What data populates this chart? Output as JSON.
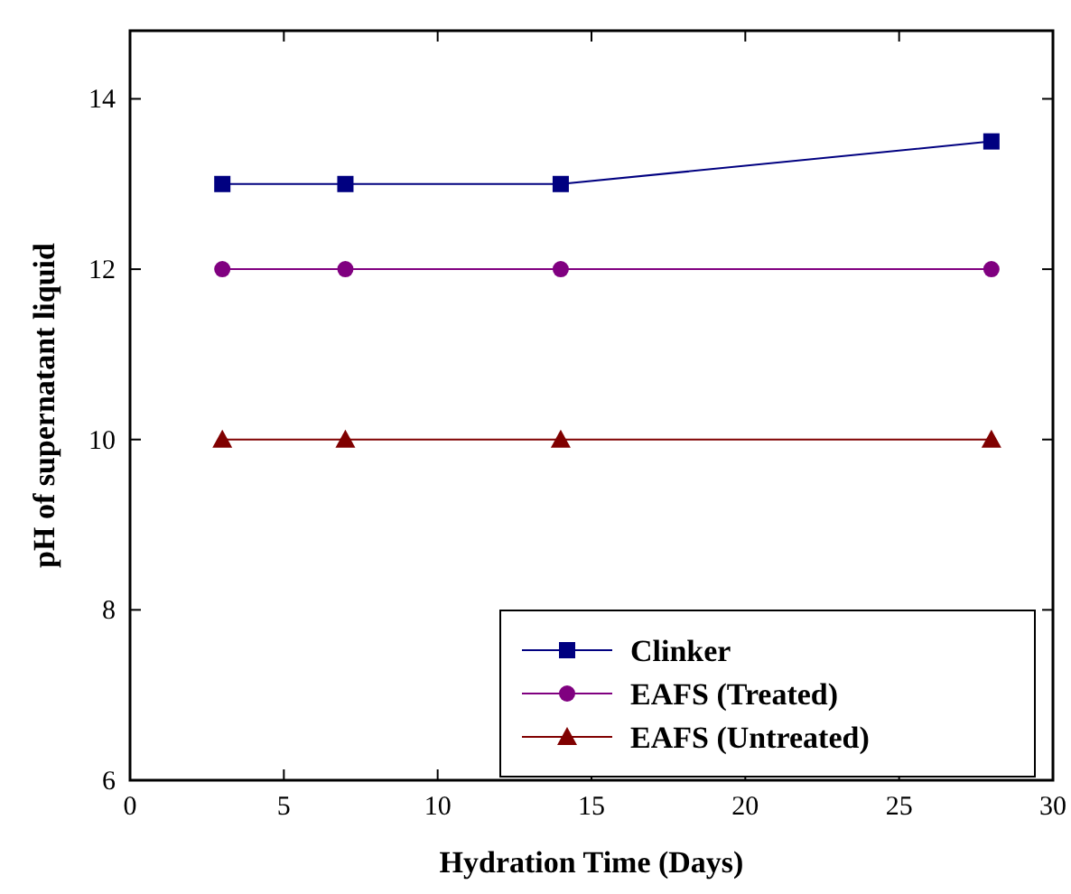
{
  "chart_data": {
    "type": "line",
    "xlabel": "Hydration Time (Days)",
    "ylabel": "pH of supernatant liquid",
    "x": [
      3,
      7,
      14,
      28
    ],
    "series": [
      {
        "name": "Clinker",
        "color": "#000080",
        "values": [
          13,
          13,
          13,
          13.5
        ],
        "marker": "square"
      },
      {
        "name": "EAFS (Treated)",
        "color": "#800080",
        "values": [
          12,
          12,
          12,
          12
        ],
        "marker": "circle"
      },
      {
        "name": "EAFS (Untreated)",
        "color": "#800000",
        "values": [
          10,
          10,
          10,
          10
        ],
        "marker": "triangle"
      }
    ],
    "xlim": [
      0,
      30
    ],
    "xticks": [
      0,
      5,
      10,
      15,
      20,
      25,
      30
    ],
    "ylim": [
      6,
      14.8
    ],
    "yticks": [
      6,
      8,
      10,
      12,
      14
    ],
    "legend": "bottom right",
    "grid": false,
    "line_style": "solid"
  }
}
